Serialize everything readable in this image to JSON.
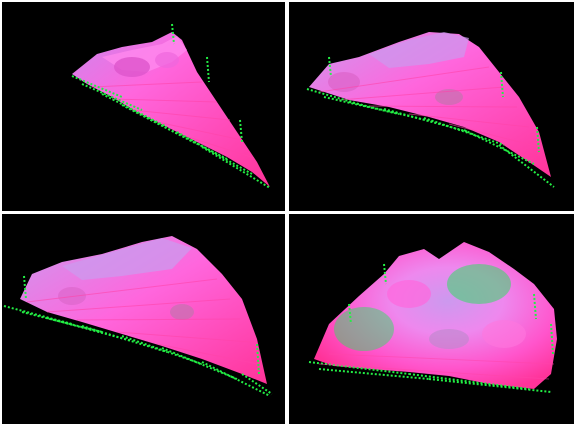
{
  "panels": [
    {
      "id": "p1",
      "view": "surface-view-1"
    },
    {
      "id": "p2",
      "view": "surface-view-2"
    },
    {
      "id": "p3",
      "view": "surface-view-3"
    },
    {
      "id": "p4",
      "view": "surface-view-4"
    }
  ],
  "colors": {
    "background": "#000000",
    "divider": "#ffffff",
    "surface_magenta": "#ff55dd",
    "surface_pink": "#ff77cc",
    "surface_green": "#33dd66",
    "edge_green": "#22ee44",
    "highlight_lavender": "#cc99ee"
  }
}
